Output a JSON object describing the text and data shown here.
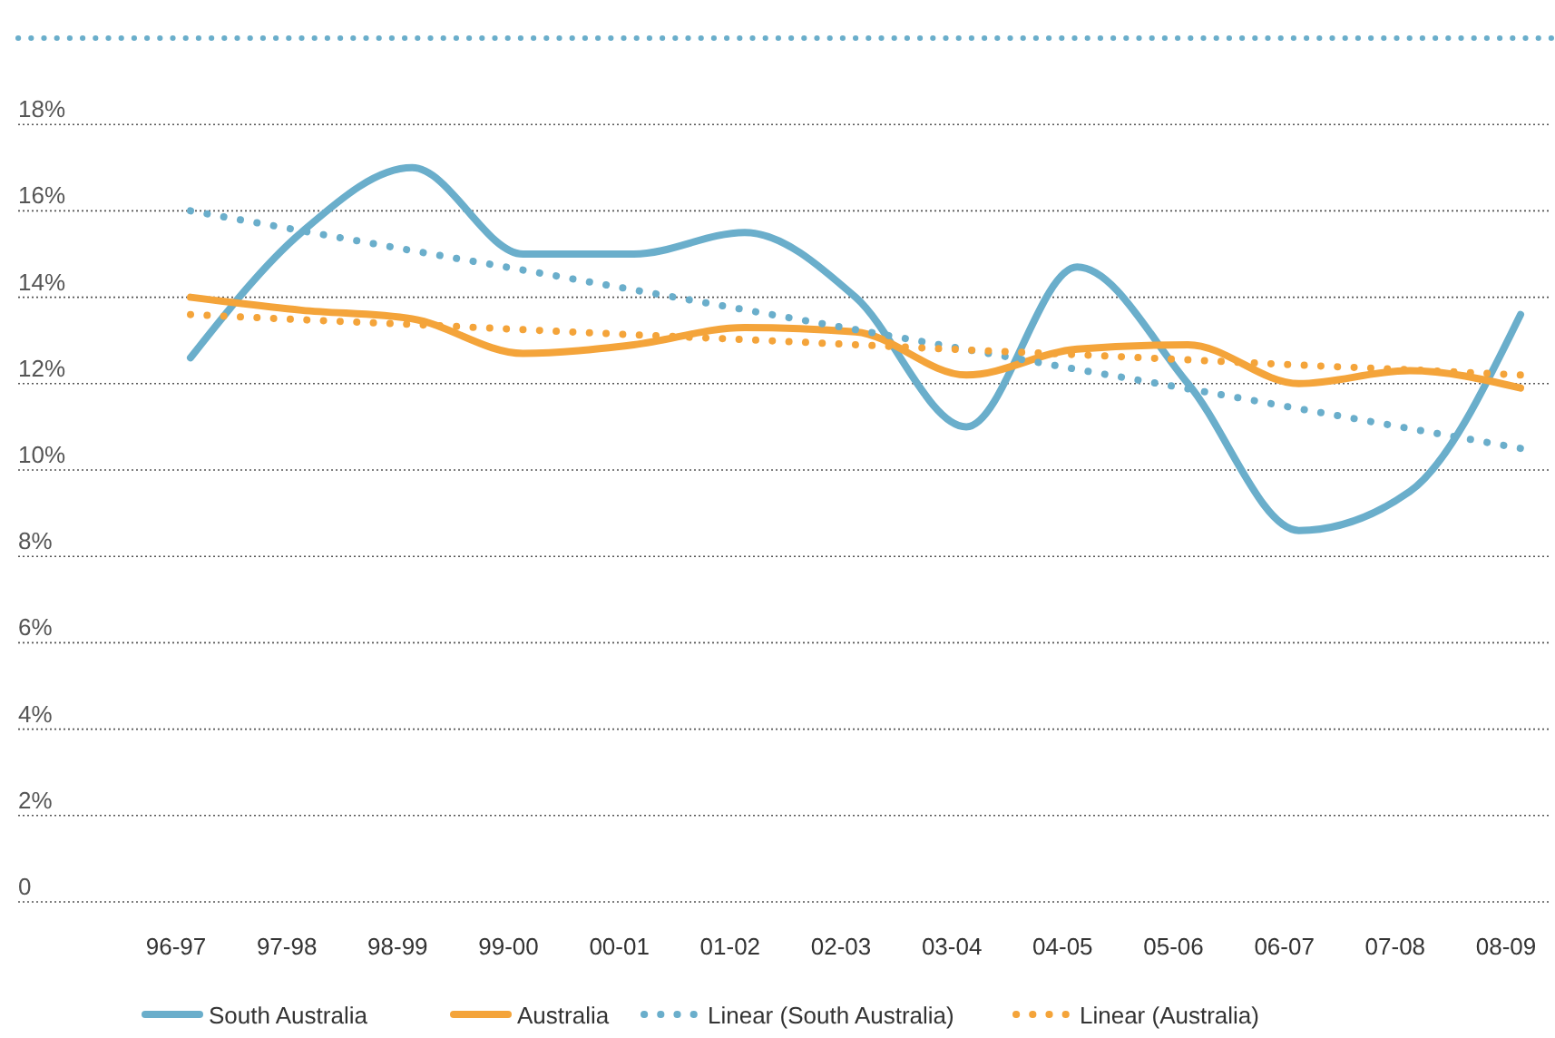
{
  "chart_data": {
    "type": "line",
    "categories": [
      "96-97",
      "97-98",
      "98-99",
      "99-00",
      "00-01",
      "01-02",
      "02-03",
      "03-04",
      "04-05",
      "05-06",
      "06-07",
      "07-08",
      "08-09"
    ],
    "series": [
      {
        "name": "South Australia",
        "color": "#6aaecb",
        "values": [
          12.6,
          15.5,
          17.0,
          15.0,
          15.0,
          15.5,
          14.0,
          11.0,
          14.7,
          12.0,
          8.6,
          9.5,
          13.6
        ]
      },
      {
        "name": "Australia",
        "color": "#f4a43a",
        "values": [
          14.0,
          13.7,
          13.5,
          12.7,
          12.9,
          13.3,
          13.2,
          12.2,
          12.8,
          12.9,
          12.0,
          12.3,
          11.9
        ]
      },
      {
        "name": "Linear (South Australia)",
        "color": "#6aaecb",
        "line_style": "dotted",
        "values": [
          16.0,
          15.54,
          15.08,
          14.63,
          14.17,
          13.71,
          13.25,
          12.79,
          12.33,
          11.88,
          11.42,
          10.96,
          10.5
        ]
      },
      {
        "name": "Linear (Australia)",
        "color": "#f4a43a",
        "line_style": "dotted",
        "values": [
          13.6,
          13.48,
          13.37,
          13.25,
          13.13,
          13.02,
          12.9,
          12.78,
          12.67,
          12.55,
          12.43,
          12.32,
          12.2
        ]
      }
    ],
    "ylim": [
      0,
      20
    ],
    "yticks": [
      {
        "value": 0,
        "label": "0"
      },
      {
        "value": 2,
        "label": "2%"
      },
      {
        "value": 4,
        "label": "4%"
      },
      {
        "value": 6,
        "label": "6%"
      },
      {
        "value": 8,
        "label": "8%"
      },
      {
        "value": 10,
        "label": "10%"
      },
      {
        "value": 12,
        "label": "12%"
      },
      {
        "value": 14,
        "label": "14%"
      },
      {
        "value": 16,
        "label": "16%"
      },
      {
        "value": 18,
        "label": "18%"
      }
    ],
    "grid": "y",
    "legend": "bottom",
    "marker": "none",
    "line_style": "solid"
  }
}
